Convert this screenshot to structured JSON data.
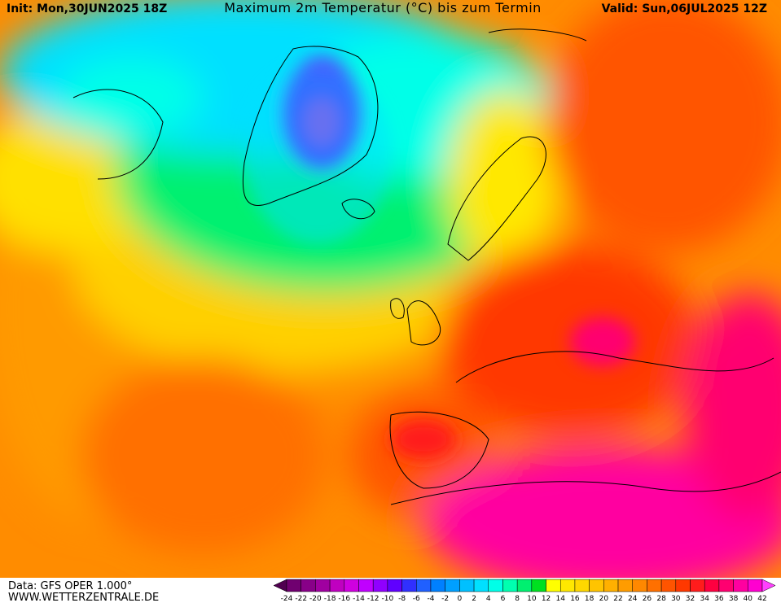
{
  "header": {
    "init": "Init: Mon,30JUN2025 18Z",
    "title": "Maximum 2m Temperatur (°C) bis zum Termin",
    "valid": "Valid: Sun,06JUL2025 12Z"
  },
  "footer": {
    "data_source": "Data: GFS OPER 1.000°",
    "website": "WWW.WETTERZENTRALE.DE"
  },
  "legend": {
    "ticks": [
      -24,
      -22,
      -20,
      -18,
      -16,
      -14,
      -12,
      -10,
      -8,
      -6,
      -4,
      -2,
      0,
      2,
      4,
      6,
      8,
      10,
      12,
      14,
      16,
      18,
      20,
      22,
      24,
      26,
      28,
      30,
      32,
      34,
      36,
      38,
      40,
      42
    ],
    "colors": [
      "#700070",
      "#880088",
      "#a000a0",
      "#c000c0",
      "#d000e0",
      "#c000ff",
      "#9000ff",
      "#6000ff",
      "#3030ff",
      "#2060ff",
      "#0080ff",
      "#00a0ff",
      "#00c0ff",
      "#00e0ff",
      "#00ffe8",
      "#00ffb0",
      "#00f070",
      "#00e020",
      "#ffff00",
      "#ffe800",
      "#ffd800",
      "#ffc400",
      "#ffb000",
      "#ff9c00",
      "#ff8800",
      "#ff7000",
      "#ff5400",
      "#ff3800",
      "#ff1c1c",
      "#ff0040",
      "#ff0070",
      "#ff00a0",
      "#ff00d0"
    ],
    "under_color": "#500050",
    "over_color": "#ff40ff"
  }
}
